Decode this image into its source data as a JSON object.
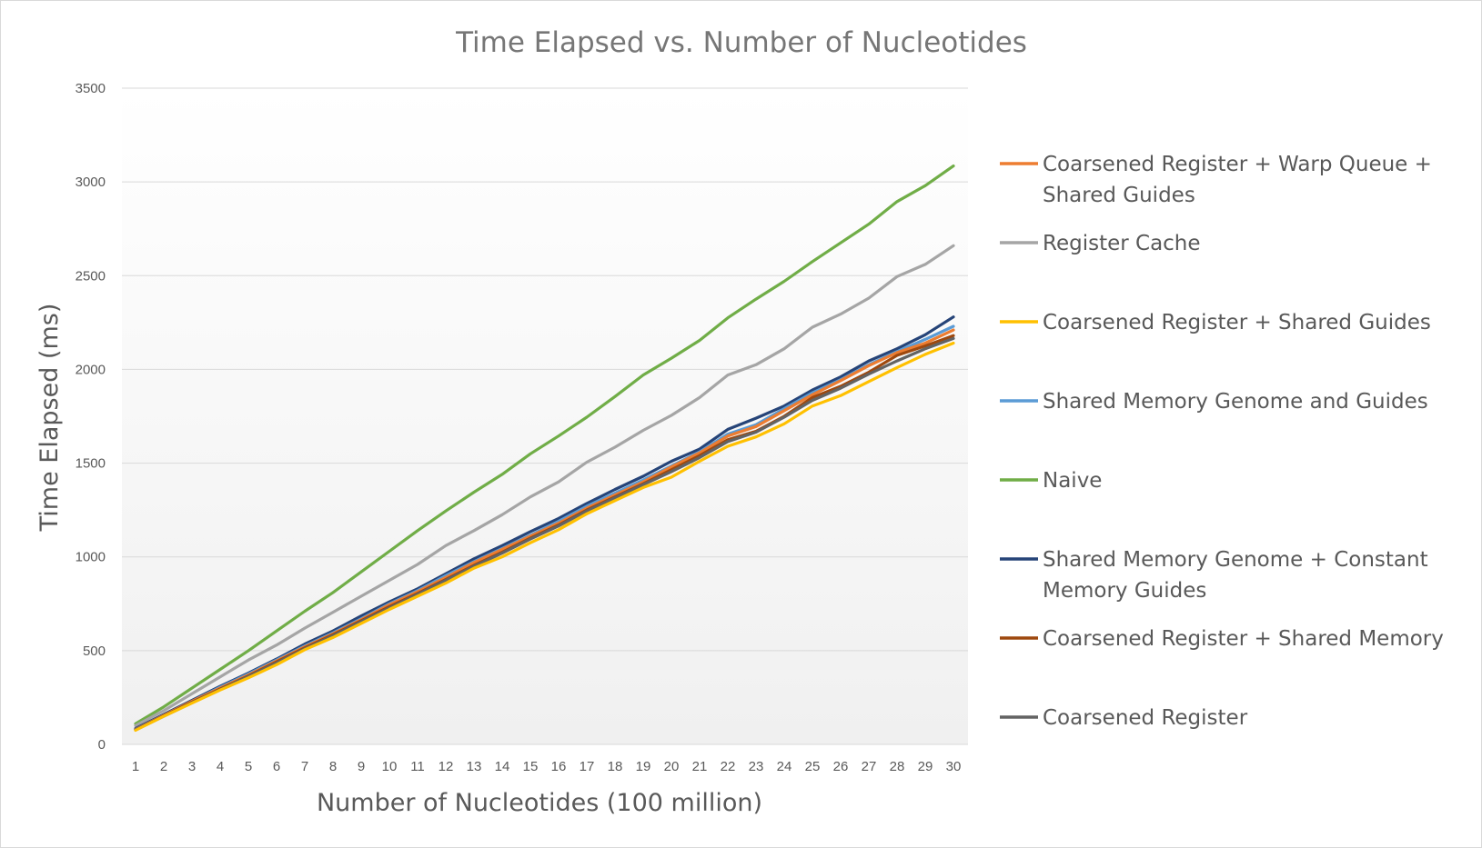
{
  "chart_data": {
    "type": "line",
    "title": "Time Elapsed vs. Number of Nucleotides",
    "xlabel": "Number of Nucleotides (100 million)",
    "ylabel": "Time Elapsed (ms)",
    "ylim": [
      0,
      3500
    ],
    "y_ticks": [
      0,
      500,
      1000,
      1500,
      2000,
      2500,
      3000,
      3500
    ],
    "grid": true,
    "legend_position": "right",
    "categories": [
      "1",
      "2",
      "3",
      "4",
      "5",
      "6",
      "7",
      "8",
      "9",
      "10",
      "11",
      "12",
      "13",
      "14",
      "15",
      "16",
      "17",
      "18",
      "19",
      "20",
      "21",
      "22",
      "23",
      "24",
      "25",
      "26",
      "27",
      "28",
      "29",
      "30"
    ],
    "series": [
      {
        "name": "Coarsened Register + Warp Queue + Shared Guides",
        "color": "#ED7D31",
        "values": [
          80,
          155,
          230,
          300,
          370,
          445,
          520,
          590,
          665,
          745,
          815,
          890,
          970,
          1040,
          1110,
          1180,
          1260,
          1330,
          1400,
          1480,
          1555,
          1645,
          1695,
          1780,
          1865,
          1940,
          2020,
          2090,
          2140,
          2210
        ]
      },
      {
        "name": "Register Cache",
        "color": "#A5A5A5",
        "values": [
          100,
          180,
          270,
          360,
          450,
          530,
          620,
          705,
          790,
          875,
          960,
          1060,
          1140,
          1225,
          1320,
          1400,
          1505,
          1585,
          1675,
          1755,
          1850,
          1970,
          2025,
          2110,
          2225,
          2295,
          2380,
          2495,
          2560,
          2660
        ]
      },
      {
        "name": "Coarsened Register + Shared Guides",
        "color": "#FFC000",
        "values": [
          75,
          150,
          220,
          290,
          355,
          425,
          505,
          570,
          645,
          720,
          790,
          860,
          940,
          1000,
          1075,
          1145,
          1230,
          1300,
          1370,
          1425,
          1510,
          1590,
          1640,
          1710,
          1805,
          1860,
          1935,
          2010,
          2080,
          2140
        ]
      },
      {
        "name": "Shared Memory Genome and Guides",
        "color": "#5B9BD5",
        "values": [
          80,
          155,
          230,
          305,
          375,
          450,
          525,
          595,
          670,
          750,
          820,
          900,
          975,
          1045,
          1115,
          1190,
          1270,
          1340,
          1410,
          1485,
          1560,
          1655,
          1705,
          1790,
          1875,
          1945,
          2025,
          2095,
          2160,
          2230
        ]
      },
      {
        "name": "Naive",
        "color": "#70AD47",
        "values": [
          110,
          200,
          300,
          400,
          500,
          605,
          710,
          810,
          920,
          1030,
          1140,
          1245,
          1345,
          1440,
          1550,
          1645,
          1745,
          1855,
          1970,
          2060,
          2155,
          2275,
          2375,
          2470,
          2575,
          2675,
          2775,
          2895,
          2980,
          3085
        ]
      },
      {
        "name": "Shared Memory Genome + Constant Memory Guides",
        "color": "#264478",
        "values": [
          85,
          160,
          235,
          310,
          380,
          455,
          535,
          605,
          685,
          760,
          830,
          910,
          990,
          1060,
          1135,
          1205,
          1285,
          1360,
          1430,
          1510,
          1575,
          1680,
          1740,
          1805,
          1890,
          1960,
          2045,
          2110,
          2185,
          2280
        ]
      },
      {
        "name": "Coarsened Register + Shared Memory",
        "color": "#9E480E",
        "values": [
          78,
          152,
          225,
          295,
          365,
          440,
          515,
          585,
          660,
          735,
          805,
          880,
          955,
          1025,
          1100,
          1170,
          1250,
          1320,
          1390,
          1465,
          1540,
          1625,
          1670,
          1750,
          1850,
          1910,
          1985,
          2075,
          2125,
          2180
        ]
      },
      {
        "name": "Coarsened Register",
        "color": "#636363",
        "values": [
          78,
          150,
          222,
          292,
          362,
          435,
          510,
          580,
          655,
          728,
          800,
          875,
          950,
          1020,
          1095,
          1165,
          1245,
          1315,
          1385,
          1455,
          1530,
          1615,
          1665,
          1745,
          1835,
          1900,
          1975,
          2045,
          2110,
          2165
        ]
      }
    ]
  }
}
